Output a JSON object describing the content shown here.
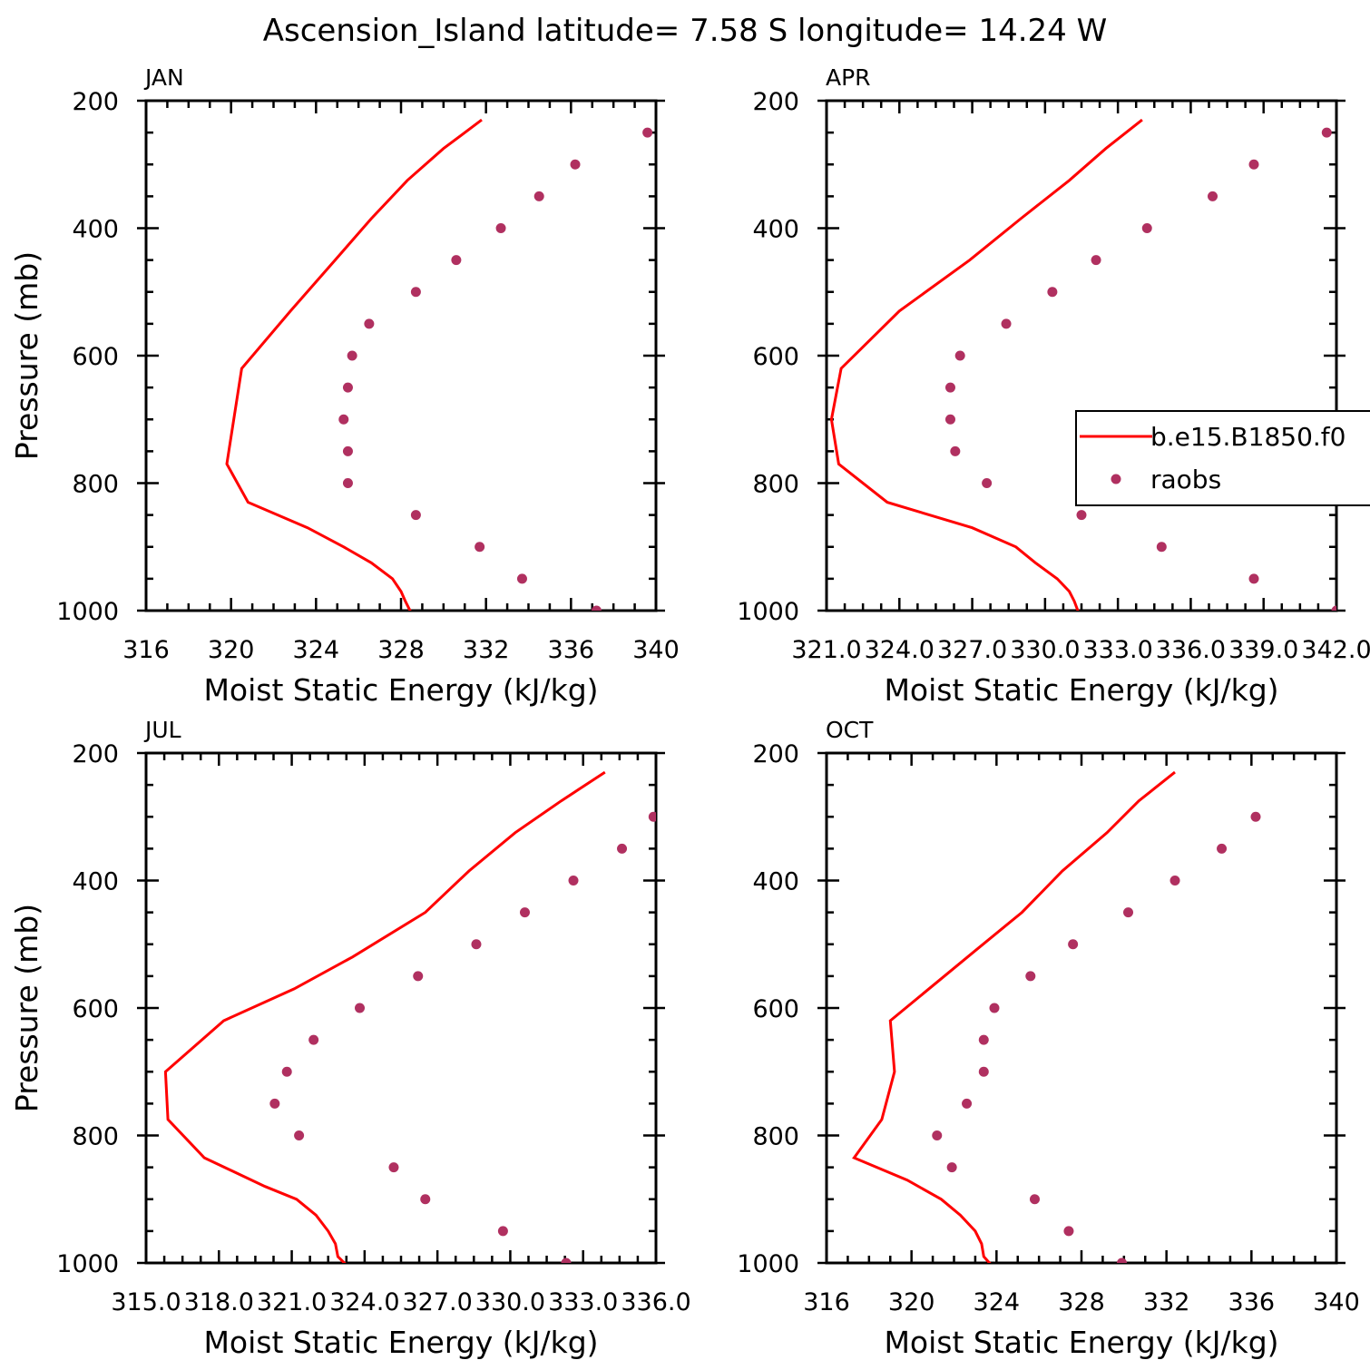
{
  "figure": {
    "title": "Ascension_Island   latitude= 7.58 S longitude= 14.24 W"
  },
  "chart_data": [
    {
      "type": "line",
      "panel_label": "JAN",
      "xlabel": "Moist Static Energy (kJ/kg)",
      "ylabel": "Pressure (mb)",
      "xlim": [
        316,
        340
      ],
      "ylim": [
        200,
        1000
      ],
      "y_inverted": true,
      "x_ticks": [
        316,
        320,
        324,
        328,
        332,
        336,
        340
      ],
      "x_tick_labels": [
        "316",
        "320",
        "324",
        "328",
        "332",
        "336",
        "340"
      ],
      "y_tick_labels": [
        "200",
        "400",
        "600",
        "800",
        "1000"
      ],
      "series": [
        {
          "name": "b.e15.B1850.f0",
          "style": "line",
          "color": "#ff0000",
          "points": [
            [
              331.8,
              230
            ],
            [
              330.0,
              275
            ],
            [
              328.3,
              325
            ],
            [
              326.6,
              385
            ],
            [
              324.9,
              450
            ],
            [
              322.8,
              530
            ],
            [
              320.5,
              620
            ],
            [
              319.8,
              770
            ],
            [
              320.8,
              830
            ],
            [
              323.6,
              870
            ],
            [
              325.3,
              900
            ],
            [
              326.6,
              925
            ],
            [
              327.6,
              950
            ],
            [
              328.0,
              970
            ],
            [
              328.2,
              985
            ],
            [
              328.5,
              1005
            ]
          ]
        },
        {
          "name": "raobs",
          "style": "markers",
          "color": "#b03060",
          "points": [
            [
              339.6,
              250
            ],
            [
              336.2,
              300
            ],
            [
              334.5,
              350
            ],
            [
              332.7,
              400
            ],
            [
              330.6,
              450
            ],
            [
              328.7,
              500
            ],
            [
              326.5,
              550
            ],
            [
              325.7,
              600
            ],
            [
              325.5,
              650
            ],
            [
              325.3,
              700
            ],
            [
              325.5,
              750
            ],
            [
              325.5,
              800
            ],
            [
              328.7,
              850
            ],
            [
              331.7,
              900
            ],
            [
              333.7,
              950
            ],
            [
              337.2,
              1000
            ]
          ]
        }
      ]
    },
    {
      "type": "line",
      "panel_label": "APR",
      "xlabel": "Moist Static Energy (kJ/kg)",
      "ylabel": "",
      "xlim": [
        321,
        342
      ],
      "ylim": [
        200,
        1000
      ],
      "y_inverted": true,
      "x_ticks": [
        321,
        324,
        327,
        330,
        333,
        336,
        339,
        342
      ],
      "x_tick_labels": [
        "321.0",
        "324.0",
        "327.0",
        "330.0",
        "333.0",
        "336.0",
        "339.0",
        "342.0"
      ],
      "y_tick_labels": [
        "200",
        "400",
        "600",
        "800",
        "1000"
      ],
      "legend": {
        "position": "right",
        "entries": [
          "b.e15.B1850.f0",
          "raobs"
        ]
      },
      "series": [
        {
          "name": "b.e15.B1850.f0",
          "style": "line",
          "color": "#ff0000",
          "points": [
            [
              334.0,
              230
            ],
            [
              332.5,
              275
            ],
            [
              331.0,
              325
            ],
            [
              329.0,
              385
            ],
            [
              326.9,
              450
            ],
            [
              324.0,
              530
            ],
            [
              321.6,
              620
            ],
            [
              321.2,
              700
            ],
            [
              321.5,
              770
            ],
            [
              323.5,
              830
            ],
            [
              327.0,
              870
            ],
            [
              328.8,
              900
            ],
            [
              329.6,
              925
            ],
            [
              330.5,
              950
            ],
            [
              331.0,
              970
            ],
            [
              331.2,
              985
            ],
            [
              331.4,
              1005
            ]
          ]
        },
        {
          "name": "raobs",
          "style": "markers",
          "color": "#b03060",
          "points": [
            [
              341.6,
              250
            ],
            [
              338.6,
              300
            ],
            [
              336.9,
              350
            ],
            [
              334.2,
              400
            ],
            [
              332.1,
              450
            ],
            [
              330.3,
              500
            ],
            [
              328.4,
              550
            ],
            [
              326.5,
              600
            ],
            [
              326.1,
              650
            ],
            [
              326.1,
              700
            ],
            [
              326.3,
              750
            ],
            [
              327.6,
              800
            ],
            [
              331.5,
              850
            ],
            [
              334.8,
              900
            ],
            [
              338.6,
              950
            ],
            [
              342.0,
              1000
            ]
          ]
        }
      ]
    },
    {
      "type": "line",
      "panel_label": "JUL",
      "xlabel": "Moist Static Energy (kJ/kg)",
      "ylabel": "Pressure (mb)",
      "xlim": [
        315,
        336
      ],
      "ylim": [
        200,
        1000
      ],
      "y_inverted": true,
      "x_ticks": [
        315,
        318,
        321,
        324,
        327,
        330,
        333,
        336
      ],
      "x_tick_labels": [
        "315.0",
        "318.0",
        "321.0",
        "324.0",
        "327.0",
        "330.0",
        "333.0",
        "336.0"
      ],
      "y_tick_labels": [
        "200",
        "400",
        "600",
        "800",
        "1000"
      ],
      "series": [
        {
          "name": "b.e15.B1850.f0",
          "style": "line",
          "color": "#ff0000",
          "points": [
            [
              333.9,
              230
            ],
            [
              332.1,
              275
            ],
            [
              330.2,
              325
            ],
            [
              328.3,
              385
            ],
            [
              326.5,
              450
            ],
            [
              323.5,
              520
            ],
            [
              321.1,
              570
            ],
            [
              318.2,
              620
            ],
            [
              315.8,
              700
            ],
            [
              315.9,
              775
            ],
            [
              317.4,
              835
            ],
            [
              319.9,
              880
            ],
            [
              321.2,
              900
            ],
            [
              322.0,
              925
            ],
            [
              322.5,
              950
            ],
            [
              322.8,
              970
            ],
            [
              322.9,
              990
            ],
            [
              323.3,
              1005
            ]
          ]
        },
        {
          "name": "raobs",
          "style": "markers",
          "color": "#b03060",
          "points": [
            [
              335.9,
              300
            ],
            [
              334.6,
              350
            ],
            [
              332.6,
              400
            ],
            [
              330.6,
              450
            ],
            [
              328.6,
              500
            ],
            [
              326.2,
              550
            ],
            [
              323.8,
              600
            ],
            [
              321.9,
              650
            ],
            [
              320.8,
              700
            ],
            [
              320.3,
              750
            ],
            [
              321.3,
              800
            ],
            [
              325.2,
              850
            ],
            [
              326.5,
              900
            ],
            [
              329.7,
              950
            ],
            [
              332.3,
              1000
            ]
          ]
        }
      ]
    },
    {
      "type": "line",
      "panel_label": "OCT",
      "xlabel": "Moist Static Energy (kJ/kg)",
      "ylabel": "",
      "xlim": [
        316,
        340
      ],
      "ylim": [
        200,
        1000
      ],
      "y_inverted": true,
      "x_ticks": [
        316,
        320,
        324,
        328,
        332,
        336,
        340
      ],
      "x_tick_labels": [
        "316",
        "320",
        "324",
        "328",
        "332",
        "336",
        "340"
      ],
      "y_tick_labels": [
        "200",
        "400",
        "600",
        "800",
        "1000"
      ],
      "series": [
        {
          "name": "b.e15.B1850.f0",
          "style": "line",
          "color": "#ff0000",
          "points": [
            [
              332.4,
              230
            ],
            [
              330.7,
              275
            ],
            [
              329.2,
              325
            ],
            [
              327.1,
              385
            ],
            [
              325.2,
              450
            ],
            [
              323.0,
              510
            ],
            [
              319.0,
              620
            ],
            [
              319.2,
              700
            ],
            [
              318.6,
              775
            ],
            [
              317.3,
              835
            ],
            [
              319.8,
              870
            ],
            [
              321.4,
              900
            ],
            [
              322.3,
              925
            ],
            [
              323.0,
              950
            ],
            [
              323.3,
              970
            ],
            [
              323.4,
              990
            ],
            [
              323.8,
              1005
            ]
          ]
        },
        {
          "name": "raobs",
          "style": "markers",
          "color": "#b03060",
          "points": [
            [
              336.2,
              300
            ],
            [
              334.6,
              350
            ],
            [
              332.4,
              400
            ],
            [
              330.2,
              450
            ],
            [
              327.6,
              500
            ],
            [
              325.6,
              550
            ],
            [
              323.9,
              600
            ],
            [
              323.4,
              650
            ],
            [
              323.4,
              700
            ],
            [
              322.6,
              750
            ],
            [
              321.2,
              800
            ],
            [
              321.9,
              850
            ],
            [
              325.8,
              900
            ],
            [
              327.4,
              950
            ],
            [
              329.9,
              1000
            ]
          ]
        }
      ]
    }
  ]
}
